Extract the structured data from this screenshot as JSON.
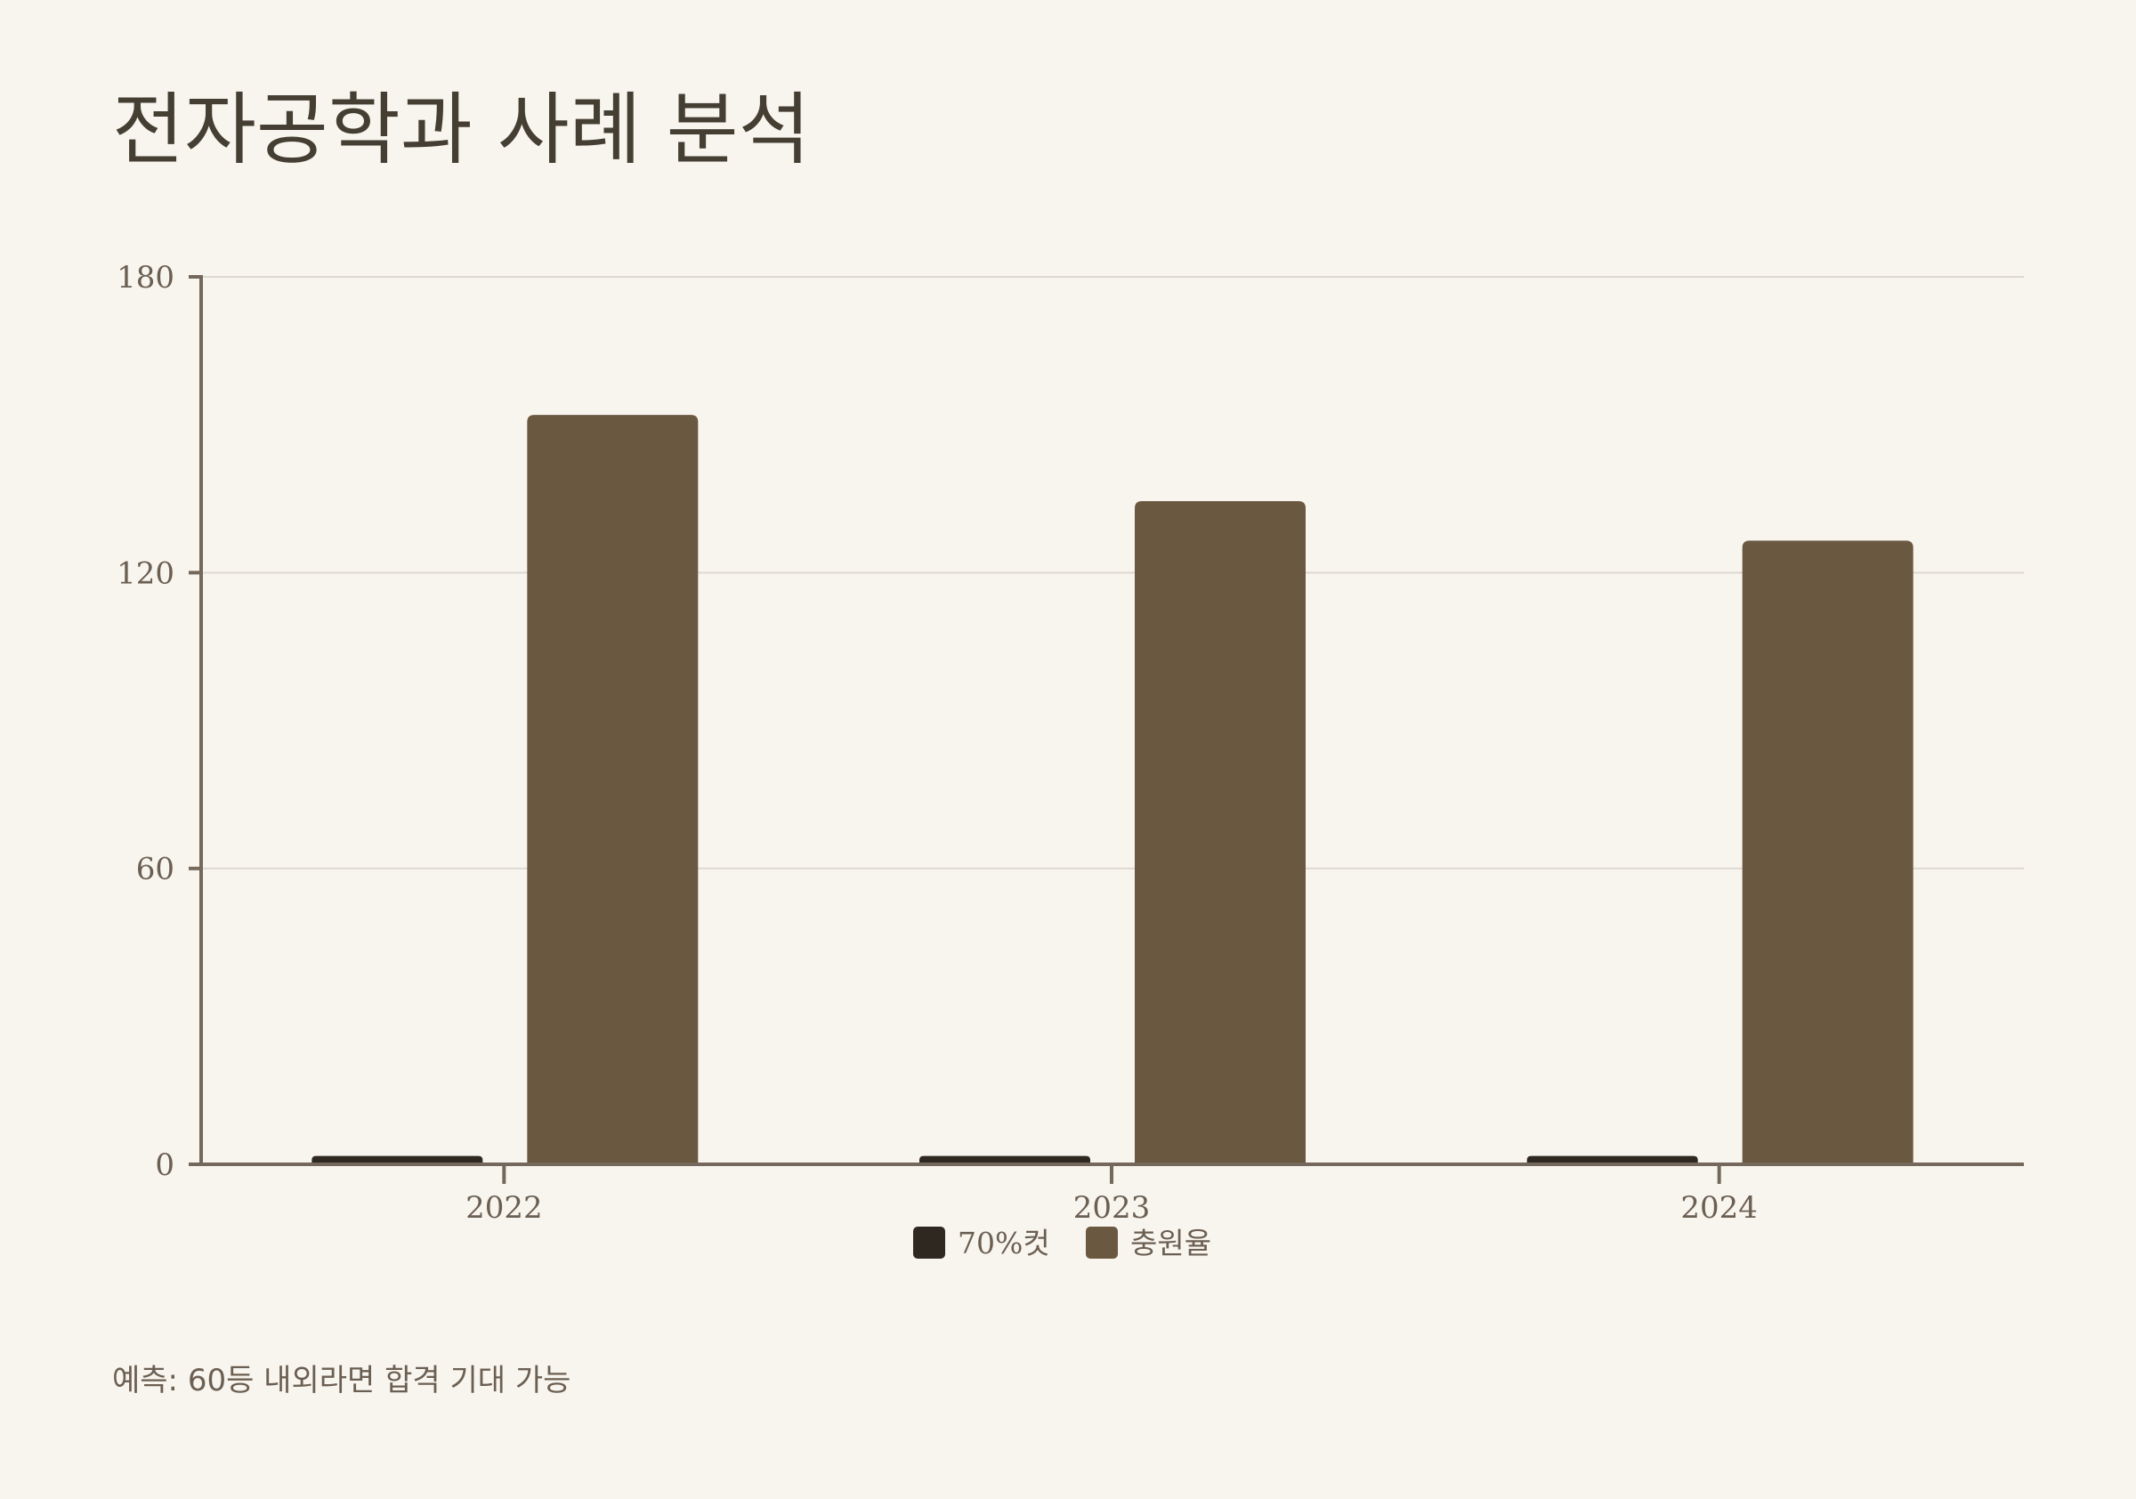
{
  "title": "전자공학과 사례 분석",
  "footnote": "예측: 60등 내외라면 합격 기대 가능",
  "colors": {
    "background": "#f8f5ef",
    "cut70": "#2e2820",
    "fill_rate": "#6b5841",
    "axis": "#74675b",
    "grid": "#ddd8d0",
    "text": "#6b5f52",
    "title": "#453f33"
  },
  "chart_data": {
    "type": "bar",
    "categories": [
      "2022",
      "2023",
      "2024"
    ],
    "series": [
      {
        "name": "70%컷",
        "values": [
          1.7,
          1.7,
          1.7
        ],
        "color": "#2e2820"
      },
      {
        "name": "충원율",
        "values": [
          152,
          134.5,
          126.5
        ],
        "color": "#6b5841"
      }
    ],
    "yticks": [
      0,
      60,
      120,
      180
    ],
    "ylim": [
      0,
      180
    ],
    "grid": true,
    "legend": "bottom-center",
    "xlabel": "",
    "ylabel": ""
  }
}
